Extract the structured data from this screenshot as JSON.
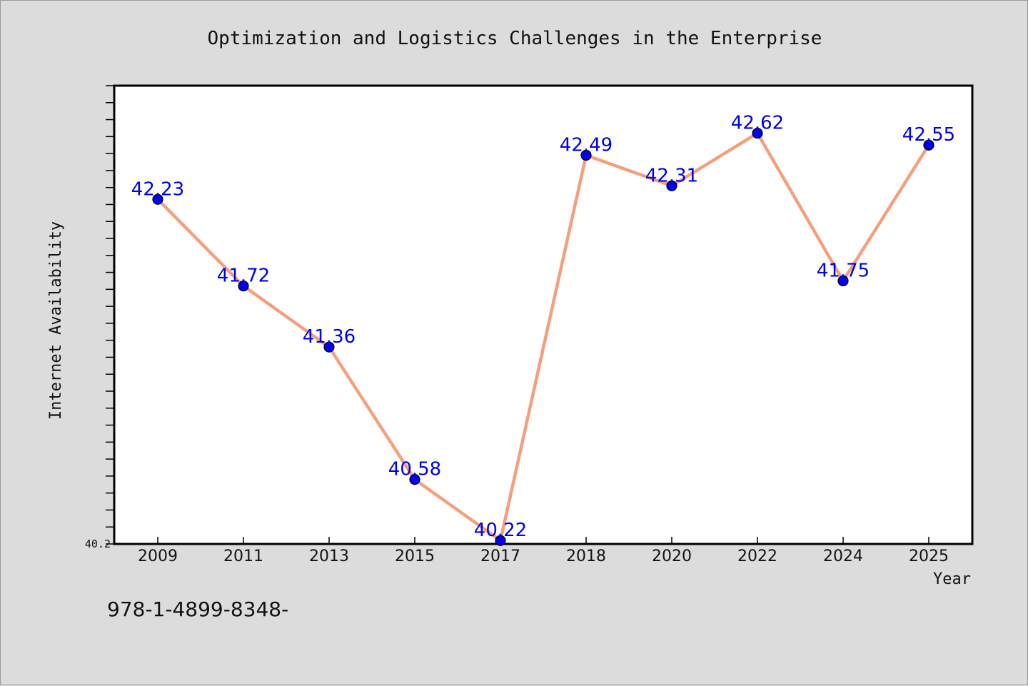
{
  "chart_data": {
    "type": "line",
    "title": "Optimization and Logistics Challenges in the Enterprise",
    "xlabel": "Year",
    "ylabel": "Internet Availability",
    "categories": [
      "2009",
      "2011",
      "2013",
      "2015",
      "2017",
      "2018",
      "2020",
      "2022",
      "2024",
      "2025"
    ],
    "series": [
      {
        "values": [
          42.23,
          41.72,
          41.36,
          40.58,
          40.22,
          42.49,
          42.31,
          42.62,
          41.75,
          42.55
        ],
        "labels": [
          "42.23",
          "41.72",
          "41.36",
          "40.58",
          "40.22",
          "42.49",
          "42.31",
          "42.62",
          "41.75",
          "42.55"
        ],
        "line_color": "#f4a07e",
        "marker_color": "#0000ee",
        "label_color": "#0000ee"
      }
    ],
    "ylim": [
      40.2,
      42.9
    ],
    "y_tick_labels": [
      "40.2"
    ],
    "y_minor_tick_step": 0.1,
    "grid": false,
    "legend": "none"
  },
  "caption": "978-1-4899-8348-",
  "colors": {
    "background": "#dcdcdc",
    "plot_area": "#ffffff",
    "axes": "#000000"
  }
}
